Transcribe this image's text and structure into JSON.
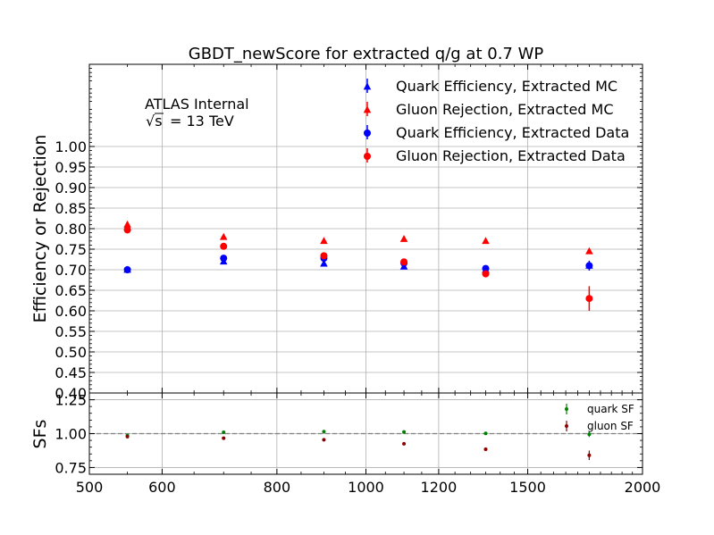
{
  "chart_data": {
    "type": "scatter",
    "title": "GBDT_newScore for extracted q/g at 0.7 WP",
    "annotation": {
      "line1": "ATLAS Internal",
      "line2_sqrt": "√s",
      "line2_rest": "= 13 TeV"
    },
    "x_scale": "log",
    "xlim": [
      500,
      2000
    ],
    "x_ticks": [
      500,
      600,
      800,
      1000,
      1200,
      1500,
      2000
    ],
    "x_tick_labels": [
      "500",
      "600",
      "800",
      "1000",
      "1200",
      "1500",
      "2000"
    ],
    "grid": true,
    "top_panel": {
      "ylabel": "Efficiency or Rejection",
      "ylim": [
        0.4,
        1.2
      ],
      "y_ticks": [
        0.4,
        0.45,
        0.5,
        0.55,
        0.6,
        0.65,
        0.7,
        0.75,
        0.8,
        0.85,
        0.9,
        0.95,
        1.0
      ],
      "y_tick_labels": [
        "0.40",
        "0.45",
        "0.50",
        "0.55",
        "0.60",
        "0.65",
        "0.70",
        "0.75",
        "0.80",
        "0.85",
        "0.90",
        "0.95",
        "1.00"
      ],
      "legend_position": "top-right",
      "series": [
        {
          "name": "Quark Efficiency, Extracted MC",
          "color": "#0000ff",
          "marker": "triangle",
          "x": [
            550,
            700,
            900,
            1100,
            1350,
            1750
          ],
          "y": [
            0.7,
            0.72,
            0.715,
            0.708,
            0.7,
            0.71
          ],
          "err": [
            0.004,
            0.004,
            0.004,
            0.004,
            0.005,
            0.006
          ]
        },
        {
          "name": "Gluon Rejection, Extracted MC",
          "color": "#ff0000",
          "marker": "triangle",
          "x": [
            550,
            700,
            900,
            1100,
            1350,
            1750
          ],
          "y": [
            0.81,
            0.78,
            0.77,
            0.775,
            0.77,
            0.745
          ],
          "err": [
            0.004,
            0.004,
            0.004,
            0.004,
            0.004,
            0.005
          ]
        },
        {
          "name": "Quark Efficiency, Extracted Data",
          "color": "#0000ff",
          "marker": "circle",
          "x": [
            550,
            700,
            900,
            1100,
            1350,
            1750
          ],
          "y": [
            0.7,
            0.728,
            0.728,
            0.716,
            0.703,
            0.71
          ],
          "err": [
            0.004,
            0.004,
            0.005,
            0.005,
            0.006,
            0.012
          ]
        },
        {
          "name": "Gluon Rejection, Extracted Data",
          "color": "#ff0000",
          "marker": "circle",
          "x": [
            550,
            700,
            900,
            1100,
            1350,
            1750
          ],
          "y": [
            0.797,
            0.757,
            0.734,
            0.719,
            0.69,
            0.63
          ],
          "err": [
            0.005,
            0.005,
            0.005,
            0.005,
            0.006,
            0.03
          ]
        }
      ]
    },
    "bottom_panel": {
      "ylabel": "SFs",
      "ylim": [
        0.7,
        1.3
      ],
      "y_ticks": [
        0.75,
        1.0,
        1.25
      ],
      "y_tick_labels": [
        "0.75",
        "1.00",
        "1.25"
      ],
      "reference_line": 1.0,
      "legend_position": "top-right",
      "series": [
        {
          "name": "quark SF",
          "color": "#008000",
          "marker": "circle",
          "x": [
            550,
            700,
            900,
            1100,
            1350,
            1750
          ],
          "y": [
            0.985,
            1.01,
            1.015,
            1.012,
            1.002,
            0.995
          ],
          "err": [
            0.008,
            0.007,
            0.008,
            0.008,
            0.009,
            0.02
          ]
        },
        {
          "name": "gluon SF",
          "color": "#8b0000",
          "marker": "circle",
          "x": [
            550,
            700,
            900,
            1100,
            1350,
            1750
          ],
          "y": [
            0.978,
            0.966,
            0.955,
            0.925,
            0.885,
            0.84
          ],
          "err": [
            0.008,
            0.007,
            0.008,
            0.008,
            0.01,
            0.035
          ]
        }
      ]
    }
  }
}
